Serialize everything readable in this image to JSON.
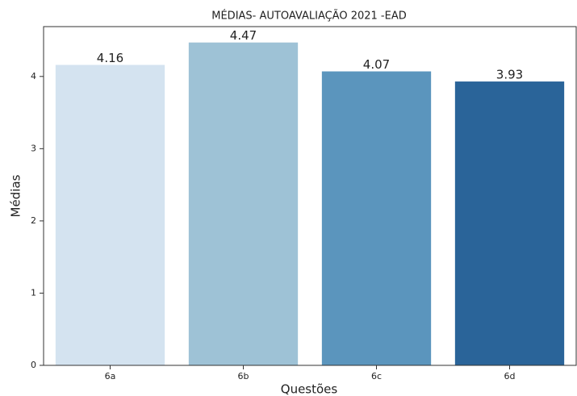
{
  "chart_data": {
    "type": "bar",
    "title": "MÉDIAS- AUTOAVALIAÇÃO 2021 -EAD",
    "x_label": "Questões",
    "y_label": "Médias",
    "categories": [
      "6a",
      "6b",
      "6c",
      "6d"
    ],
    "values": [
      4.16,
      4.47,
      4.07,
      3.93
    ],
    "colors": [
      "#d4e3f0",
      "#9ec2d6",
      "#5b95bd",
      "#2a6499"
    ],
    "ylim": [
      0,
      4.69
    ],
    "yticks": [
      0,
      1,
      2,
      3,
      4
    ]
  }
}
